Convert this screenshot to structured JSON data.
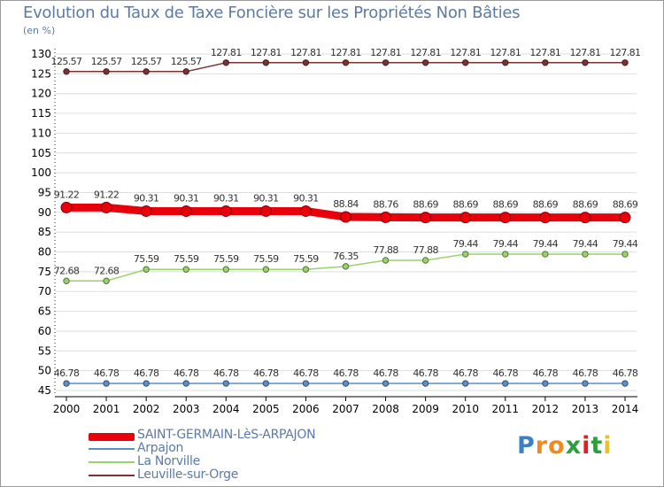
{
  "title": "Evolution du Taux de Taxe Foncière sur les Propriétés Non Bâties",
  "ylabel": "(en %)",
  "logo": "Proxiti",
  "chart_data": {
    "type": "line",
    "title": "Evolution du Taux de Taxe Foncière sur les Propriétés Non Bâties",
    "ylabel": "(en %)",
    "xlabel": "",
    "x": [
      "2000",
      "2001",
      "2002",
      "2003",
      "2004",
      "2005",
      "2006",
      "2007",
      "2008",
      "2009",
      "2010",
      "2011",
      "2012",
      "2013",
      "2014"
    ],
    "ylim": [
      45,
      130
    ],
    "yticks": [
      45,
      50,
      55,
      60,
      65,
      70,
      75,
      80,
      85,
      90,
      95,
      100,
      105,
      110,
      115,
      120,
      125,
      130
    ],
    "grid": "horizontal",
    "legend_position": "bottom-left",
    "series": [
      {
        "name": "SAINT-GERMAIN-LèS-ARPAJON",
        "color": "#e8000b",
        "values": [
          91.22,
          91.22,
          90.31,
          90.31,
          90.31,
          90.31,
          90.31,
          88.84,
          88.76,
          88.69,
          88.69,
          88.69,
          88.69,
          88.69,
          88.69
        ],
        "labels": [
          "91.22",
          "91.22",
          "90.31",
          "90.31",
          "90.31",
          "90.31",
          "90.31",
          "88.84",
          "88.76",
          "88.69",
          "88.69",
          "88.69",
          "88.69",
          "88.69",
          "88.69"
        ]
      },
      {
        "name": "Arpajon",
        "color": "#5b8fc9",
        "values": [
          46.78,
          46.78,
          46.78,
          46.78,
          46.78,
          46.78,
          46.78,
          46.78,
          46.78,
          46.78,
          46.78,
          46.78,
          46.78,
          46.78,
          46.78
        ],
        "labels": [
          "46.78",
          "46.78",
          "46.78",
          "46.78",
          "46.78",
          "46.78",
          "46.78",
          "46.78",
          "46.78",
          "46.78",
          "46.78",
          "46.78",
          "46.78",
          "46.78",
          "46.78"
        ]
      },
      {
        "name": "La Norville",
        "color": "#99d36a",
        "values": [
          72.68,
          72.68,
          75.59,
          75.59,
          75.59,
          75.59,
          75.59,
          76.35,
          77.88,
          77.88,
          79.44,
          79.44,
          79.44,
          79.44,
          79.44
        ],
        "labels": [
          "72.68",
          "72.68",
          "75.59",
          "75.59",
          "75.59",
          "75.59",
          "75.59",
          "76.35",
          "77.88",
          "77.88",
          "79.44",
          "79.44",
          "79.44",
          "79.44",
          "79.44"
        ]
      },
      {
        "name": "Leuville-sur-Orge",
        "color": "#7a3333",
        "values": [
          125.57,
          125.57,
          125.57,
          125.57,
          127.81,
          127.81,
          127.81,
          127.81,
          127.81,
          127.81,
          127.81,
          127.81,
          127.81,
          127.81,
          127.81
        ],
        "labels": [
          "125.57",
          "125.57",
          "125.57",
          "125.57",
          "127.81",
          "127.81",
          "127.81",
          "127.81",
          "127.81",
          "127.81",
          "127.81",
          "127.81",
          "127.81",
          "127.81",
          "127.81"
        ]
      }
    ]
  }
}
